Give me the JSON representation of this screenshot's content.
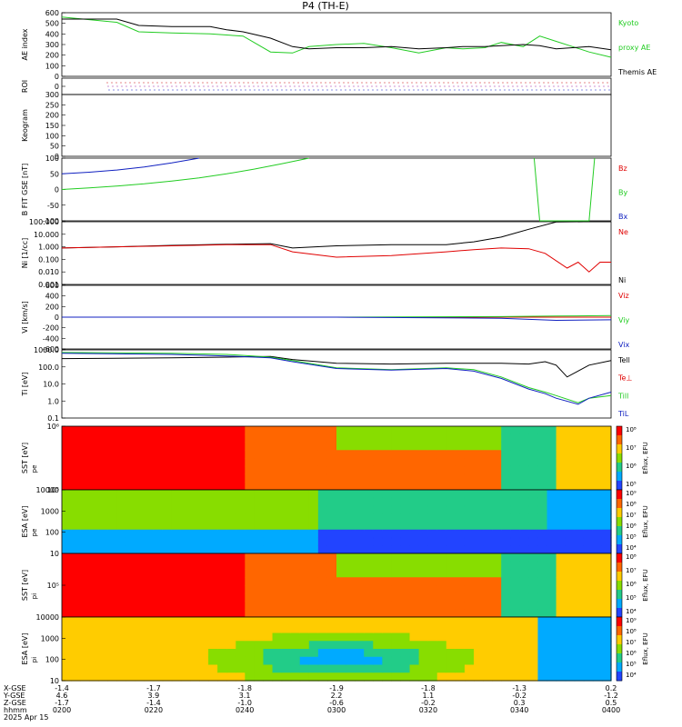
{
  "title": "P4 (TH-E)",
  "colors": {
    "black": "#000000",
    "red": "#e00000",
    "green": "#22cc22",
    "blue": "#1020c0"
  },
  "chart_data": [
    {
      "id": "ae",
      "type": "line",
      "ylabel": "AE index",
      "yticks": [
        "600",
        "500",
        "400",
        "300",
        "200",
        "100",
        "0"
      ],
      "ylim": [
        0,
        600
      ],
      "legend": [
        {
          "name": "Kyoto",
          "color": "green"
        },
        {
          "name": "proxy AE",
          "color": "green"
        },
        {
          "name": "Themis AE",
          "color": "black"
        }
      ],
      "series": [
        {
          "name": "Kyoto proxy AE",
          "color": "green",
          "x": [
            0,
            0.1,
            0.14,
            0.2,
            0.27,
            0.3,
            0.33,
            0.38,
            0.42,
            0.45,
            0.5,
            0.55,
            0.6,
            0.65,
            0.7,
            0.73,
            0.77,
            0.8,
            0.84,
            0.87,
            0.9,
            0.93,
            0.96,
            1.0
          ],
          "y": [
            560,
            510,
            420,
            410,
            400,
            390,
            380,
            230,
            220,
            280,
            300,
            310,
            270,
            220,
            270,
            260,
            270,
            320,
            280,
            380,
            330,
            280,
            230,
            180
          ]
        },
        {
          "name": "Themis AE",
          "color": "black",
          "x": [
            0,
            0.1,
            0.14,
            0.2,
            0.27,
            0.3,
            0.33,
            0.38,
            0.42,
            0.45,
            0.5,
            0.55,
            0.6,
            0.65,
            0.7,
            0.73,
            0.77,
            0.8,
            0.84,
            0.87,
            0.9,
            0.93,
            0.96,
            1.0
          ],
          "y": [
            540,
            540,
            480,
            470,
            470,
            440,
            420,
            360,
            280,
            260,
            270,
            270,
            280,
            260,
            270,
            280,
            280,
            290,
            300,
            290,
            260,
            270,
            280,
            250
          ]
        }
      ]
    },
    {
      "id": "roi",
      "type": "scatter",
      "ylabel": "ROI",
      "yticks": [
        "0"
      ]
    },
    {
      "id": "keogram",
      "type": "heatmap",
      "ylabel": "Keogram",
      "yticks": [
        "300",
        "250",
        "200",
        "150",
        "100",
        "50",
        "0"
      ],
      "ylim": [
        0,
        300
      ]
    },
    {
      "id": "bfield",
      "type": "line",
      "ylabel": "B FIT GSE [nT]",
      "yticks": [
        "100",
        "50",
        "0",
        "-50",
        "-100"
      ],
      "ylim": [
        -100,
        100
      ],
      "legend": [
        {
          "name": "Bz",
          "color": "red"
        },
        {
          "name": "By",
          "color": "green"
        },
        {
          "name": "Bx",
          "color": "blue"
        }
      ],
      "series": [
        {
          "name": "Bx",
          "color": "blue",
          "x": [
            0,
            0.05,
            0.1,
            0.15,
            0.2,
            0.25
          ],
          "y": [
            50,
            55,
            62,
            72,
            85,
            100
          ]
        },
        {
          "name": "By",
          "color": "green",
          "x": [
            0,
            0.05,
            0.1,
            0.15,
            0.2,
            0.25,
            0.3,
            0.35,
            0.4,
            0.45
          ],
          "y": [
            0,
            5,
            11,
            18,
            27,
            37,
            50,
            65,
            82,
            100
          ]
        },
        {
          "name": "By (late)",
          "color": "green",
          "x": [
            0.86,
            0.87,
            0.89,
            0.96,
            0.97
          ],
          "y": [
            100,
            -100,
            -100,
            -100,
            100
          ]
        }
      ]
    },
    {
      "id": "density",
      "type": "line",
      "yscale": "log",
      "ylabel": "Ni [1/cc]",
      "yticks": [
        "100.000",
        "10.000",
        "1.000",
        "0.100",
        "0.010",
        "0.001"
      ],
      "ylim": [
        0.001,
        100
      ],
      "legend": [
        {
          "name": "Ne",
          "color": "red"
        },
        {
          "name": "Ni",
          "color": "black"
        }
      ],
      "series": [
        {
          "name": "Ni",
          "color": "black",
          "x": [
            0,
            0.1,
            0.2,
            0.3,
            0.38,
            0.42,
            0.5,
            0.6,
            0.7,
            0.75,
            0.8,
            0.85,
            0.9,
            0.95,
            1.0
          ],
          "y": [
            0.8,
            1,
            1.3,
            1.6,
            1.8,
            0.8,
            1.2,
            1.5,
            1.5,
            2.5,
            6,
            25,
            95,
            100,
            100
          ]
        },
        {
          "name": "Ne",
          "color": "red",
          "x": [
            0,
            0.1,
            0.2,
            0.3,
            0.38,
            0.42,
            0.5,
            0.6,
            0.7,
            0.75,
            0.8,
            0.85,
            0.88,
            0.92,
            0.94,
            0.96,
            0.98,
            1.0
          ],
          "y": [
            0.8,
            1,
            1.2,
            1.5,
            1.5,
            0.4,
            0.15,
            0.2,
            0.4,
            0.6,
            0.8,
            0.7,
            0.3,
            0.02,
            0.06,
            0.01,
            0.06,
            0.06
          ]
        }
      ]
    },
    {
      "id": "velocity",
      "type": "line",
      "ylabel": "Vi [km/s]",
      "yticks": [
        "600",
        "400",
        "200",
        "0",
        "-200",
        "-400",
        "-600"
      ],
      "ylim": [
        -600,
        600
      ],
      "legend": [
        {
          "name": "Viz",
          "color": "red"
        },
        {
          "name": "Viy",
          "color": "green"
        },
        {
          "name": "Vix",
          "color": "blue"
        }
      ],
      "series": [
        {
          "name": "Viz",
          "color": "red",
          "x": [
            0,
            0.5,
            1.0
          ],
          "y": [
            0,
            0,
            0
          ]
        },
        {
          "name": "Viy",
          "color": "green",
          "x": [
            0,
            0.5,
            0.8,
            0.9,
            1.0
          ],
          "y": [
            0,
            0,
            10,
            20,
            30
          ]
        },
        {
          "name": "Vix",
          "color": "blue",
          "x": [
            0,
            0.5,
            0.8,
            0.9,
            1.0
          ],
          "y": [
            0,
            0,
            -20,
            -60,
            -50
          ]
        }
      ]
    },
    {
      "id": "temperature",
      "type": "line",
      "yscale": "log",
      "ylabel": "Ti [eV]",
      "yticks": [
        "1000.0",
        "100.0",
        "10.0",
        "1.0",
        "0.1"
      ],
      "ylim": [
        0.1,
        3000
      ],
      "legend": [
        {
          "name": "Tell",
          "color": "black"
        },
        {
          "name": "Te⊥",
          "color": "red"
        },
        {
          "name": "Till",
          "color": "green"
        },
        {
          "name": "TiL",
          "color": "blue"
        }
      ],
      "series": [
        {
          "name": "Tell",
          "color": "black",
          "x": [
            0,
            0.2,
            0.3,
            0.38,
            0.42,
            0.5,
            0.6,
            0.7,
            0.8,
            0.85,
            0.88,
            0.9,
            0.92,
            0.96,
            1.0
          ],
          "y": [
            800,
            900,
            1000,
            1100,
            700,
            400,
            350,
            400,
            400,
            350,
            500,
            300,
            50,
            300,
            600
          ]
        },
        {
          "name": "Till",
          "color": "green",
          "x": [
            0,
            0.2,
            0.3,
            0.38,
            0.42,
            0.5,
            0.6,
            0.7,
            0.75,
            0.8,
            0.85,
            0.88,
            0.9,
            0.94,
            0.96,
            1.0
          ],
          "y": [
            2000,
            1800,
            1500,
            1000,
            600,
            200,
            150,
            200,
            150,
            50,
            10,
            5,
            3,
            1,
            2,
            3
          ]
        },
        {
          "name": "TiL",
          "color": "blue",
          "x": [
            0,
            0.2,
            0.3,
            0.38,
            0.42,
            0.5,
            0.6,
            0.7,
            0.75,
            0.8,
            0.85,
            0.88,
            0.9,
            0.94,
            0.96,
            1.0
          ],
          "y": [
            1800,
            1500,
            1200,
            900,
            500,
            180,
            140,
            180,
            120,
            40,
            8,
            4,
            2,
            0.8,
            2,
            5
          ]
        }
      ]
    },
    {
      "id": "sst_e",
      "type": "heatmap",
      "ylabel": "SST [eV]",
      "sublabel": "pe",
      "yticks": [
        "10⁶",
        "10⁵"
      ],
      "cbar": [
        "10⁸",
        "10⁷",
        "10⁶",
        "10⁵"
      ],
      "cbar_label": "Eflux, EFU"
    },
    {
      "id": "esa_e",
      "type": "heatmap",
      "ylabel": "ESA [eV]",
      "sublabel": "pe",
      "yticks": [
        "10000",
        "1000",
        "100",
        "10"
      ],
      "cbar": [
        "10⁹",
        "10⁸",
        "10⁷",
        "10⁶",
        "10⁵",
        "10⁴"
      ],
      "cbar_label": "Eflux, EFU"
    },
    {
      "id": "sst_i",
      "type": "heatmap",
      "ylabel": "SST [eV]",
      "sublabel": "pi",
      "yticks": [
        "10⁵"
      ],
      "cbar": [
        "10⁸",
        "10⁷",
        "10⁶",
        "10⁵",
        "10⁴"
      ],
      "cbar_label": "Eflux, EFU"
    },
    {
      "id": "esa_i",
      "type": "heatmap",
      "ylabel": "ESA [eV]",
      "sublabel": "pi",
      "yticks": [
        "10000",
        "1000",
        "100",
        "10"
      ],
      "cbar": [
        "10⁹",
        "10⁸",
        "10⁷",
        "10⁶",
        "10⁵",
        "10⁴"
      ],
      "cbar_label": "Eflux, EFU"
    }
  ],
  "xaxis": {
    "row_labels": [
      "X-GSE",
      "Y-GSE",
      "Z-GSE",
      "hhmm",
      "2025 Apr 15"
    ],
    "ticks": [
      {
        "x": 0.0,
        "vals": [
          "-1.4",
          "4.6",
          "-1.7",
          "0200"
        ]
      },
      {
        "x": 0.167,
        "vals": [
          "-1.7",
          "3.9",
          "-1.4",
          "0220"
        ]
      },
      {
        "x": 0.333,
        "vals": [
          "-1.8",
          "3.1",
          "-1.0",
          "0240"
        ]
      },
      {
        "x": 0.5,
        "vals": [
          "-1.9",
          "2.2",
          "-0.6",
          "0300"
        ]
      },
      {
        "x": 0.667,
        "vals": [
          "-1.8",
          "1.1",
          "-0.2",
          "0320"
        ]
      },
      {
        "x": 0.833,
        "vals": [
          "-1.3",
          "-0.2",
          "0.3",
          "0340"
        ]
      },
      {
        "x": 1.0,
        "vals": [
          "0.2",
          "-1.2",
          "0.5",
          "0400"
        ]
      }
    ]
  }
}
